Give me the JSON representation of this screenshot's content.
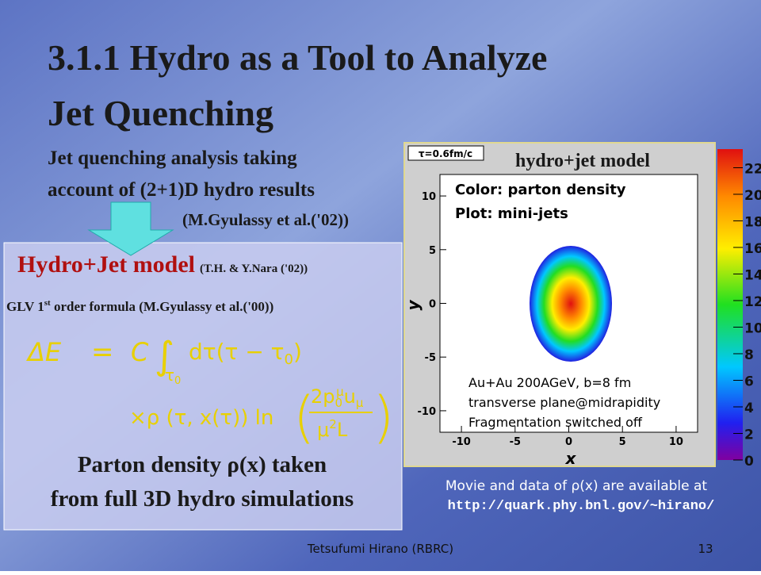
{
  "title_lines": [
    "3.1.1 Hydro as a Tool to Analyze",
    "Jet Quenching"
  ],
  "subtitle_lines": [
    "Jet quenching analysis taking",
    "account of  (2+1)D hydro results"
  ],
  "subtitle_ref": "(M.Gyulassy et al.('02))",
  "box": {
    "model": "Hydro+Jet model",
    "model_ref": "(T.H. & Y.Nara ('02))",
    "formula_label": {
      "pre": "GLV 1",
      "sup": "st",
      "post": " order formula (M.Gyulassy et al.('00))"
    },
    "formula": {
      "lhs": "ΔE",
      "eq": "=",
      "c": "C",
      "integral": "∫",
      "lower": "τ",
      "lower_sub": "0",
      "integrand": "dτ(τ − τ",
      "integrand_sub": "0",
      "integrand_end": ")",
      "line2": "×ρ (τ, x(τ)) ln",
      "num": "2p",
      "num_sub": "0",
      "num_sup": "μ",
      "num_end": "u",
      "num_end_sub": "μ",
      "den": "μ",
      "den_sup": "2",
      "den_end": "L"
    },
    "conclusion_lines": [
      "Parton density ρ(x) taken",
      "from full 3D hydro simulations"
    ]
  },
  "plot": {
    "tau_label": "τ=0.6fm/c",
    "title": "hydro+jet model",
    "legend_lines": [
      "Color: parton density",
      "Plot: mini-jets"
    ],
    "note_lines": [
      "Au+Au 200AGeV, b=8 fm",
      "transverse plane@midrapidity",
      "Fragmentation switched off"
    ],
    "xlabel": "x",
    "ylabel": "y",
    "xlim": [
      -12,
      12
    ],
    "xticks": [
      -10,
      -5,
      0,
      5,
      10
    ],
    "ylim": [
      -12,
      12
    ],
    "yticks": [
      -10,
      -5,
      0,
      5,
      10
    ],
    "clim": [
      0,
      23.4
    ],
    "cticks": [
      0,
      2,
      4,
      6,
      8,
      10,
      12,
      14,
      16,
      18,
      20,
      22
    ]
  },
  "caption_lines": [
    "Movie and data of ρ(x) are available at",
    "http://quark.phy.bnl.gov/~hirano/"
  ],
  "footer": {
    "author": "Tetsufumi Hirano (RBRC)",
    "page": "13"
  }
}
